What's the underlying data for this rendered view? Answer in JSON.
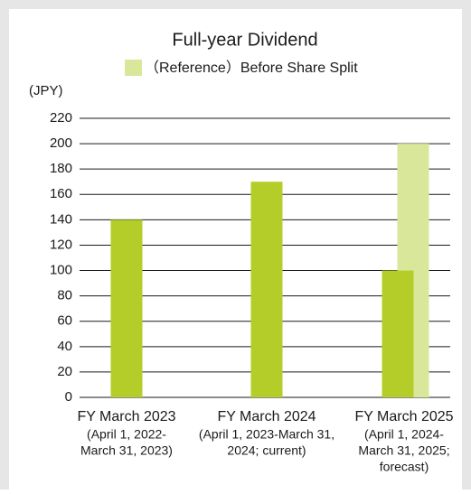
{
  "chart_data": {
    "type": "bar",
    "title": "Full-year Dividend",
    "y_label": "(JPY)",
    "categories": [
      "FY March 2023",
      "FY March 2024",
      "FY March 2025"
    ],
    "category_notes": [
      [
        "(April 1, 2022-",
        "March 31, 2023)"
      ],
      [
        "(April 1, 2023-March 31,",
        "2024; current)"
      ],
      [
        "(April 1, 2024-",
        "March 31, 2025;",
        "forecast)"
      ]
    ],
    "series": [
      {
        "color": "#b5cd28",
        "values": [
          140,
          170,
          100
        ]
      },
      {
        "name": "（Reference）Before Share Split",
        "color": "#d9e79a",
        "values": [
          null,
          null,
          200
        ]
      }
    ],
    "ylim": [
      0,
      220
    ],
    "yticks": [
      0,
      20,
      40,
      60,
      80,
      100,
      120,
      140,
      160,
      180,
      200,
      220
    ],
    "grid": true
  }
}
